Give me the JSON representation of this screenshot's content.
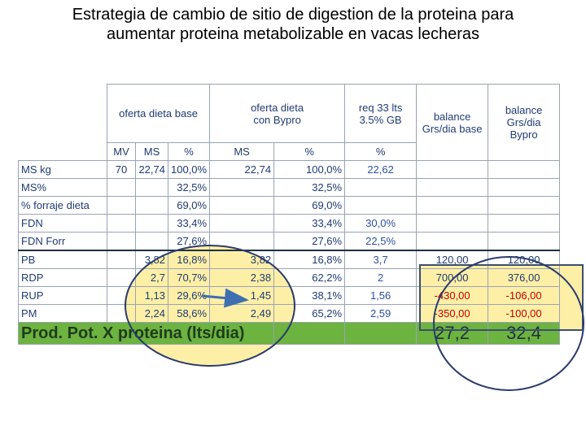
{
  "title": {
    "line1": "Estrategia de cambio de sitio de digestion de la proteina para",
    "line2": "aumentar proteina metabolizable en vacas lecheras"
  },
  "headers": {
    "base": "oferta dieta base",
    "bypro_line1": "oferta dieta",
    "bypro_line2": "con Bypro",
    "req_line1": "req 33 lts",
    "req_line2": "3.5% GB",
    "bal_base_line1": "balance",
    "bal_base_line2": "Grs/dia base",
    "bal_bypro_line1": "balance",
    "bal_bypro_line2": "Grs/dia",
    "bal_bypro_line3": "Bypro"
  },
  "subheaders": [
    "MV",
    "MS",
    "%",
    "MS",
    "%",
    "%"
  ],
  "rows": [
    {
      "label": "MS kg",
      "mv": "70",
      "ms": "22,74",
      "pct": "100,0%",
      "ms2": "22,74",
      "pct2": "100,0%",
      "req": "22,62",
      "bal1": "",
      "bal2": ""
    },
    {
      "label": "MS%",
      "mv": "",
      "ms": "",
      "pct": "32,5%",
      "ms2": "",
      "pct2": "32,5%",
      "req": "",
      "bal1": "",
      "bal2": ""
    },
    {
      "label": "% forraje dieta",
      "mv": "",
      "ms": "",
      "pct": "69,0%",
      "ms2": "",
      "pct2": "69,0%",
      "req": "",
      "bal1": "",
      "bal2": ""
    },
    {
      "label": "FDN",
      "mv": "",
      "ms": "",
      "pct": "33,4%",
      "ms2": "",
      "pct2": "33,4%",
      "req": "30,0%",
      "bal1": "",
      "bal2": ""
    },
    {
      "label": "FDN Forr",
      "mv": "",
      "ms": "",
      "pct": "27,6%",
      "ms2": "",
      "pct2": "27,6%",
      "req": "22,5%",
      "bal1": "",
      "bal2": ""
    },
    {
      "label": "PB",
      "mv": "",
      "ms": "3,82",
      "pct": "16,8%",
      "ms2": "3,82",
      "pct2": "16,8%",
      "req": "3,7",
      "bal1": "120,00",
      "bal2": "120,00"
    },
    {
      "label": "RDP",
      "mv": "",
      "ms": "2,7",
      "pct": "70,7%",
      "ms2": "2,38",
      "pct2": "62,2%",
      "req": "2",
      "bal1": "700,00",
      "bal2": "376,00"
    },
    {
      "label": "RUP",
      "mv": "",
      "ms": "1,13",
      "pct": "29,6%",
      "ms2": "1,45",
      "pct2": "38,1%",
      "req": "1,56",
      "bal1": "-430,00",
      "bal2": "-106,00"
    },
    {
      "label": "PM",
      "mv": "",
      "ms": "2,24",
      "pct": "58,6%",
      "ms2": "2,49",
      "pct2": "65,2%",
      "req": "2,59",
      "bal1": "-350,00",
      "bal2": "-100,00"
    }
  ],
  "footer": {
    "label": "Prod. Pot. X proteina (lts/dia)",
    "base": "27,2",
    "bypro": "32,4"
  },
  "colors": {
    "highlight_yellow": "#fde98a",
    "circle_blue": "#2a3b6e",
    "green_row": "#6cb33f",
    "negative_red": "#c00000"
  }
}
